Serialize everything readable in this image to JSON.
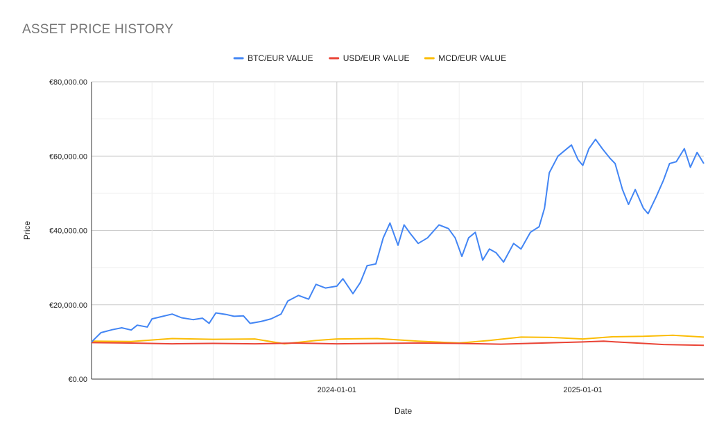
{
  "chart_data": {
    "type": "line",
    "title": "ASSET PRICE HISTORY",
    "xlabel": "Date",
    "ylabel": "Price",
    "ylim": [
      0,
      80000
    ],
    "y_ticks": [
      {
        "value": 0,
        "label": "€0.00"
      },
      {
        "value": 20000,
        "label": "€20,000.00"
      },
      {
        "value": 40000,
        "label": "€40,000.00"
      },
      {
        "value": 60000,
        "label": "€60,000.00"
      },
      {
        "value": 80000,
        "label": "€80,000.00"
      }
    ],
    "x_range": [
      "2023-01-01",
      "2025-06-30"
    ],
    "x_ticks": [
      {
        "date": "2024-01-01",
        "label": "2024-01-01"
      },
      {
        "date": "2025-01-01",
        "label": "2025-01-01"
      }
    ],
    "grid": true,
    "legend_position": "top",
    "series": [
      {
        "name": "BTC/EUR VALUE",
        "color": "#4285f4",
        "points": [
          [
            "2023-01-01",
            10000
          ],
          [
            "2023-01-15",
            12500
          ],
          [
            "2023-02-01",
            13300
          ],
          [
            "2023-02-15",
            13800
          ],
          [
            "2023-03-01",
            13200
          ],
          [
            "2023-03-10",
            14500
          ],
          [
            "2023-03-25",
            14000
          ],
          [
            "2023-04-01",
            16200
          ],
          [
            "2023-04-15",
            16800
          ],
          [
            "2023-05-01",
            17500
          ],
          [
            "2023-05-15",
            16500
          ],
          [
            "2023-06-01",
            16000
          ],
          [
            "2023-06-15",
            16400
          ],
          [
            "2023-06-25",
            15000
          ],
          [
            "2023-07-05",
            17800
          ],
          [
            "2023-07-20",
            17400
          ],
          [
            "2023-08-01",
            16900
          ],
          [
            "2023-08-15",
            17000
          ],
          [
            "2023-08-25",
            15000
          ],
          [
            "2023-09-10",
            15500
          ],
          [
            "2023-09-25",
            16200
          ],
          [
            "2023-10-10",
            17500
          ],
          [
            "2023-10-20",
            21000
          ],
          [
            "2023-11-05",
            22500
          ],
          [
            "2023-11-20",
            21500
          ],
          [
            "2023-12-01",
            25500
          ],
          [
            "2023-12-15",
            24500
          ],
          [
            "2024-01-01",
            25000
          ],
          [
            "2024-01-10",
            27000
          ],
          [
            "2024-01-25",
            23000
          ],
          [
            "2024-02-05",
            26000
          ],
          [
            "2024-02-15",
            30500
          ],
          [
            "2024-02-28",
            31000
          ],
          [
            "2024-03-10",
            38000
          ],
          [
            "2024-03-20",
            42000
          ],
          [
            "2024-04-01",
            36000
          ],
          [
            "2024-04-10",
            41500
          ],
          [
            "2024-04-20",
            39000
          ],
          [
            "2024-05-01",
            36500
          ],
          [
            "2024-05-15",
            38000
          ],
          [
            "2024-06-01",
            41500
          ],
          [
            "2024-06-15",
            40500
          ],
          [
            "2024-06-25",
            38000
          ],
          [
            "2024-07-05",
            33000
          ],
          [
            "2024-07-15",
            38000
          ],
          [
            "2024-07-25",
            39500
          ],
          [
            "2024-08-05",
            32000
          ],
          [
            "2024-08-15",
            35000
          ],
          [
            "2024-08-25",
            34000
          ],
          [
            "2024-09-05",
            31500
          ],
          [
            "2024-09-20",
            36500
          ],
          [
            "2024-10-01",
            35000
          ],
          [
            "2024-10-15",
            39500
          ],
          [
            "2024-10-28",
            41000
          ],
          [
            "2024-11-05",
            46000
          ],
          [
            "2024-11-12",
            55500
          ],
          [
            "2024-11-25",
            60000
          ],
          [
            "2024-12-05",
            61500
          ],
          [
            "2024-12-15",
            63000
          ],
          [
            "2024-12-25",
            59000
          ],
          [
            "2025-01-01",
            57500
          ],
          [
            "2025-01-10",
            62000
          ],
          [
            "2025-01-20",
            64500
          ],
          [
            "2025-01-30",
            62000
          ],
          [
            "2025-02-10",
            59500
          ],
          [
            "2025-02-18",
            58000
          ],
          [
            "2025-03-01",
            51000
          ],
          [
            "2025-03-10",
            47000
          ],
          [
            "2025-03-20",
            51000
          ],
          [
            "2025-04-01",
            46000
          ],
          [
            "2025-04-08",
            44500
          ],
          [
            "2025-04-20",
            49000
          ],
          [
            "2025-05-01",
            53500
          ],
          [
            "2025-05-10",
            58000
          ],
          [
            "2025-05-20",
            58500
          ],
          [
            "2025-06-01",
            62000
          ],
          [
            "2025-06-10",
            57000
          ],
          [
            "2025-06-20",
            61000
          ],
          [
            "2025-06-30",
            58000
          ]
        ]
      },
      {
        "name": "USD/EUR VALUE",
        "color": "#ea4335",
        "points": [
          [
            "2023-01-01",
            9800
          ],
          [
            "2023-03-01",
            9700
          ],
          [
            "2023-05-01",
            9500
          ],
          [
            "2023-07-01",
            9600
          ],
          [
            "2023-09-01",
            9500
          ],
          [
            "2023-11-01",
            9700
          ],
          [
            "2024-01-01",
            9500
          ],
          [
            "2024-03-01",
            9600
          ],
          [
            "2024-05-01",
            9700
          ],
          [
            "2024-07-01",
            9600
          ],
          [
            "2024-09-01",
            9400
          ],
          [
            "2024-11-01",
            9700
          ],
          [
            "2025-01-01",
            10000
          ],
          [
            "2025-02-01",
            10200
          ],
          [
            "2025-03-01",
            9900
          ],
          [
            "2025-04-01",
            9600
          ],
          [
            "2025-05-01",
            9300
          ],
          [
            "2025-06-30",
            9100
          ]
        ]
      },
      {
        "name": "MCD/EUR VALUE",
        "color": "#fbbc04",
        "points": [
          [
            "2023-01-01",
            10200
          ],
          [
            "2023-03-01",
            10100
          ],
          [
            "2023-05-01",
            10900
          ],
          [
            "2023-07-01",
            10700
          ],
          [
            "2023-09-01",
            10800
          ],
          [
            "2023-10-15",
            9500
          ],
          [
            "2023-12-01",
            10400
          ],
          [
            "2024-01-01",
            10800
          ],
          [
            "2024-03-01",
            10900
          ],
          [
            "2024-05-01",
            10200
          ],
          [
            "2024-07-01",
            9700
          ],
          [
            "2024-08-15",
            10400
          ],
          [
            "2024-10-01",
            11300
          ],
          [
            "2024-11-15",
            11200
          ],
          [
            "2025-01-01",
            10800
          ],
          [
            "2025-02-15",
            11400
          ],
          [
            "2025-04-01",
            11500
          ],
          [
            "2025-05-15",
            11800
          ],
          [
            "2025-06-30",
            11300
          ]
        ]
      }
    ]
  }
}
